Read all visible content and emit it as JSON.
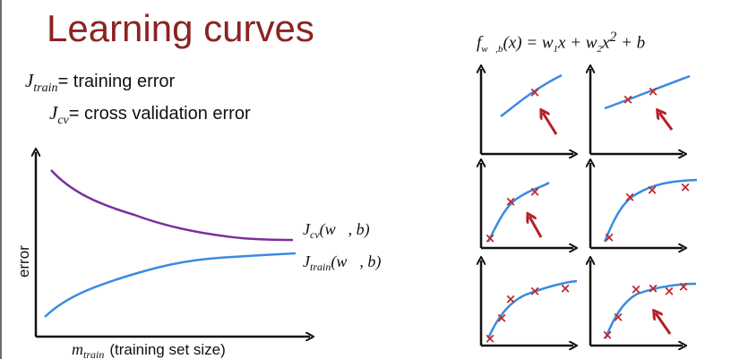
{
  "slide": {
    "title": "Learning curves",
    "definitions": {
      "train_symbol": "J",
      "train_subscript": "train",
      "train_text": "= training error",
      "cv_symbol": "J",
      "cv_subscript": "cv",
      "cv_text": "= cross validation error"
    },
    "main_plot": {
      "ylabel": "error",
      "xlabel_symbol": "m",
      "xlabel_subscript": "train",
      "xlabel_text": "(training set size)",
      "cv_label_symbol": "J",
      "cv_label_subscript": "cv",
      "cv_label_args": "(w⃗, b)",
      "train_label_symbol": "J",
      "train_label_subscript": "train",
      "train_label_args": "(w⃗, b)",
      "cv_color": "#7b2f9e",
      "train_color": "#3a8be0"
    },
    "formula": {
      "f": "f",
      "f_sub": "w⃗,b",
      "body_1": "(x) = w",
      "sub_1": "1",
      "body_2": "x + w",
      "sub_2": "2",
      "body_3": "x",
      "sup": "2",
      "body_4": " + b"
    },
    "mini_plots": {
      "count": 6,
      "marker": "×",
      "curve_color": "#3a8be0",
      "marker_color": "#c0282e",
      "arrow_color": "#b5202a",
      "points_per_plot": [
        1,
        2,
        3,
        4,
        5,
        6
      ]
    }
  }
}
